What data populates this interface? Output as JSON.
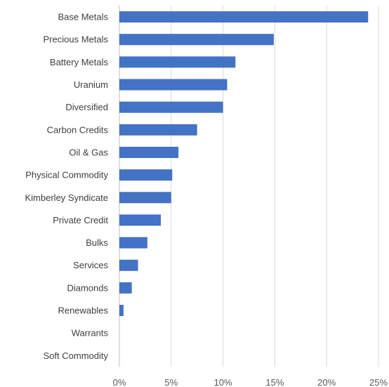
{
  "chart_data": {
    "type": "bar",
    "orientation": "horizontal",
    "title": "",
    "xlabel": "",
    "ylabel": "",
    "categories": [
      "Base Metals",
      "Precious Metals",
      "Battery Metals",
      "Uranium",
      "Diversified",
      "Carbon Credits",
      "Oil & Gas",
      "Physical Commodity",
      "Kimberley Syndicate",
      "Private Credit",
      "Bulks",
      "Services",
      "Diamonds",
      "Renewables",
      "Warrants",
      "Soft Commodity"
    ],
    "values": [
      24.0,
      14.9,
      11.2,
      10.4,
      10.0,
      7.5,
      5.7,
      5.1,
      5.0,
      4.0,
      2.7,
      1.8,
      1.2,
      0.4,
      0.0,
      0.0
    ],
    "value_unit": "percent",
    "xlim": [
      0,
      25
    ],
    "xticks": [
      0,
      5,
      10,
      15,
      20,
      25
    ],
    "xtick_labels": [
      "0%",
      "5%",
      "10%",
      "15%",
      "20%",
      "25%"
    ],
    "grid": "vertical",
    "legend": "none",
    "bar_color": "#4472C4",
    "grid_color": "#D9D9D9"
  }
}
